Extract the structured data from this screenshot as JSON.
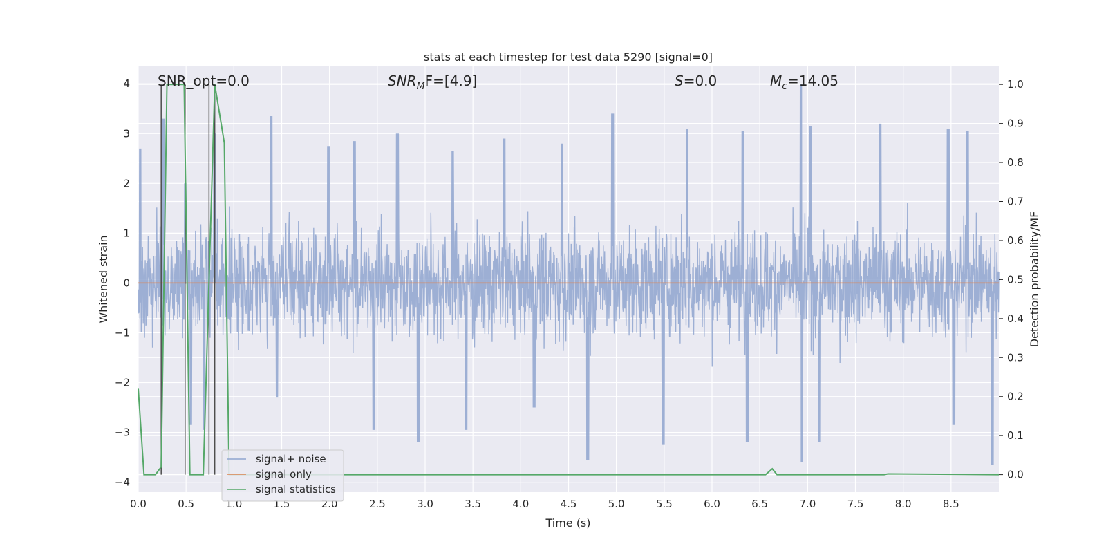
{
  "chart_data": {
    "type": "line",
    "title": "stats at each timestep for test data 5290 [signal=0]",
    "xlabel": "Time (s)",
    "ylabel": "Whitened strain",
    "ylabel_right": "Detection probability/MF",
    "xlim": [
      0.0,
      9.0
    ],
    "ylim": [
      -4.2,
      4.35
    ],
    "ylim_right": [
      -0.045,
      1.0464
    ],
    "x_ticks": [
      0.0,
      0.5,
      1.0,
      1.5,
      2.0,
      2.5,
      3.0,
      3.5,
      4.0,
      4.5,
      5.0,
      5.5,
      6.0,
      6.5,
      7.0,
      7.5,
      8.0,
      8.5
    ],
    "x_tick_labels": [
      "0.0",
      "0.5",
      "1.0",
      "1.5",
      "2.0",
      "2.5",
      "3.0",
      "3.5",
      "4.0",
      "4.5",
      "5.0",
      "5.5",
      "6.0",
      "6.5",
      "7.0",
      "7.5",
      "8.0",
      "8.5"
    ],
    "y_ticks": [
      4,
      3,
      2,
      1,
      0,
      -1,
      -2,
      -3,
      -4
    ],
    "y_tick_labels": [
      "4",
      "3",
      "2",
      "1",
      "0",
      "−1",
      "−2",
      "−3",
      "−4"
    ],
    "y_right_ticks": [
      1.0,
      0.9,
      0.8,
      0.7,
      0.6,
      0.5,
      0.4,
      0.3,
      0.2,
      0.1,
      0.0
    ],
    "y_right_tick_labels": [
      "1.0",
      "0.9",
      "0.8",
      "0.7",
      "0.6",
      "0.5",
      "0.4",
      "0.3",
      "0.2",
      "0.1",
      "0.0"
    ],
    "annotations": {
      "snr_opt": "SNR_opt=0.0",
      "snr_mf_main": "SNR",
      "snr_mf_sub": "M",
      "snr_mf_rest": "F=[4.9]",
      "s_main": "S",
      "s_rest": "=0.0",
      "mc_main": "M",
      "mc_sub": "c",
      "mc_rest": "=14.05"
    },
    "vertical_markers_x": [
      0.24,
      0.49,
      0.74,
      0.8
    ],
    "series": [
      {
        "name": "signal+ noise",
        "color": "#8fa5cf",
        "envelope_upper_peaks": [
          [
            0.02,
            2.7
          ],
          [
            0.26,
            3.3
          ],
          [
            0.49,
            2.0
          ],
          [
            0.8,
            3.0
          ],
          [
            1.39,
            3.35
          ],
          [
            1.99,
            2.75
          ],
          [
            2.26,
            2.85
          ],
          [
            2.71,
            3.0
          ],
          [
            3.29,
            2.65
          ],
          [
            3.83,
            2.9
          ],
          [
            4.43,
            2.8
          ],
          [
            4.96,
            3.4
          ],
          [
            5.74,
            3.1
          ],
          [
            6.32,
            3.05
          ],
          [
            6.93,
            4.0
          ],
          [
            7.03,
            3.15
          ],
          [
            7.76,
            3.2
          ],
          [
            8.47,
            3.1
          ],
          [
            8.67,
            3.05
          ]
        ],
        "envelope_lower_peaks": [
          [
            0.55,
            -2.85
          ],
          [
            0.69,
            -2.95
          ],
          [
            1.45,
            -2.3
          ],
          [
            2.46,
            -2.95
          ],
          [
            2.93,
            -3.2
          ],
          [
            3.43,
            -2.95
          ],
          [
            4.14,
            -2.5
          ],
          [
            4.7,
            -3.55
          ],
          [
            5.49,
            -3.25
          ],
          [
            6.37,
            -3.2
          ],
          [
            6.94,
            -3.6
          ],
          [
            7.12,
            -3.2
          ],
          [
            8.53,
            -2.85
          ],
          [
            8.93,
            -3.65
          ]
        ]
      },
      {
        "name": "signal only",
        "color": "#dd8452",
        "x": [
          0.0,
          9.0
        ],
        "y": [
          0.0,
          0.0
        ]
      },
      {
        "name": "signal statistics",
        "color": "#55a868",
        "axis": "right",
        "x": [
          0.0,
          0.06,
          0.18,
          0.24,
          0.3,
          0.48,
          0.54,
          0.68,
          0.8,
          0.9,
          0.95,
          1.0,
          6.56,
          6.63,
          6.68,
          7.8,
          7.84,
          9.0
        ],
        "y": [
          0.22,
          0.0,
          0.0,
          0.02,
          1.0,
          1.0,
          0.0,
          0.0,
          1.0,
          0.85,
          0.0,
          0.0,
          0.0,
          0.015,
          0.0,
          0.0,
          0.002,
          0.0
        ]
      }
    ],
    "legend": {
      "placement": "lower-left",
      "entries": [
        "signal+ noise",
        "signal only",
        "signal statistics"
      ]
    },
    "grid": true,
    "colors": {
      "axes_bg": "#eaeaf2",
      "grid": "#ffffff",
      "marker_line": "#4d4d4d"
    }
  }
}
